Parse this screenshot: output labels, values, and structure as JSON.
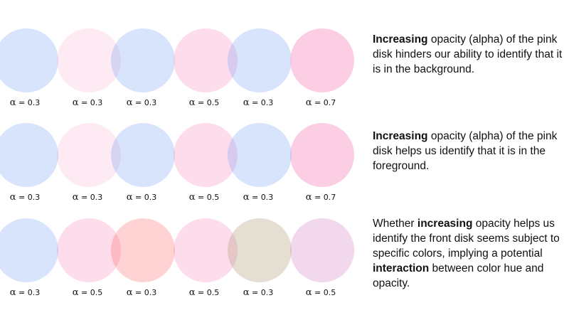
{
  "alpha_symbol": "α",
  "cells": [
    {
      "left": {
        "color": "#7FA3F5",
        "alpha": "0.3",
        "on_top": false
      },
      "right": {
        "color": "#FBB9D7",
        "alpha": "0.3",
        "on_top": true
      }
    },
    {
      "left": {
        "color": "#7FA3F5",
        "alpha": "0.3",
        "on_top": false
      },
      "right": {
        "color": "#FBB9D7",
        "alpha": "0.5",
        "on_top": true
      }
    },
    {
      "left": {
        "color": "#7FA3F5",
        "alpha": "0.3",
        "on_top": false
      },
      "right": {
        "color": "#FBB9D7",
        "alpha": "0.7",
        "on_top": true
      }
    },
    {
      "left": {
        "color": "#7FA3F5",
        "alpha": "0.3",
        "on_top": true
      },
      "right": {
        "color": "#FBB9D7",
        "alpha": "0.3",
        "on_top": false
      }
    },
    {
      "left": {
        "color": "#7FA3F5",
        "alpha": "0.3",
        "on_top": true
      },
      "right": {
        "color": "#FBB9D7",
        "alpha": "0.5",
        "on_top": false
      }
    },
    {
      "left": {
        "color": "#7FA3F5",
        "alpha": "0.3",
        "on_top": true
      },
      "right": {
        "color": "#FBB9D7",
        "alpha": "0.7",
        "on_top": false
      }
    },
    {
      "left": {
        "color": "#7FA3F5",
        "alpha": "0.3",
        "on_top": true
      },
      "right": {
        "color": "#FBB9D7",
        "alpha": "0.5",
        "on_top": false
      }
    },
    {
      "left": {
        "color": "#FF6E6E",
        "alpha": "0.3",
        "on_top": true
      },
      "right": {
        "color": "#FBB9D7",
        "alpha": "0.5",
        "on_top": false
      }
    },
    {
      "left": {
        "color": "#A8946C",
        "alpha": "0.3",
        "on_top": true
      },
      "right": {
        "color": "#E3B2D9",
        "alpha": "0.5",
        "on_top": false
      }
    }
  ],
  "captions": [
    {
      "parts": [
        {
          "text": "Increasing",
          "bold": true
        },
        {
          "text": " opacity (alpha)  of the pink disk hinders our ability to identify that it is in the background.",
          "bold": false
        }
      ]
    },
    {
      "parts": [
        {
          "text": "Increasing",
          "bold": true
        },
        {
          "text": " opacity (alpha) of the pink disk helps us identify that it is in the foreground.",
          "bold": false
        }
      ]
    },
    {
      "parts": [
        {
          "text": "Whether ",
          "bold": false
        },
        {
          "text": "increasing",
          "bold": true
        },
        {
          "text": "  opacity helps us identify the front disk seems subject to specific colors, implying a potential ",
          "bold": false
        },
        {
          "text": "interaction",
          "bold": true
        },
        {
          "text": " between color hue and opacity.",
          "bold": false
        }
      ]
    }
  ]
}
